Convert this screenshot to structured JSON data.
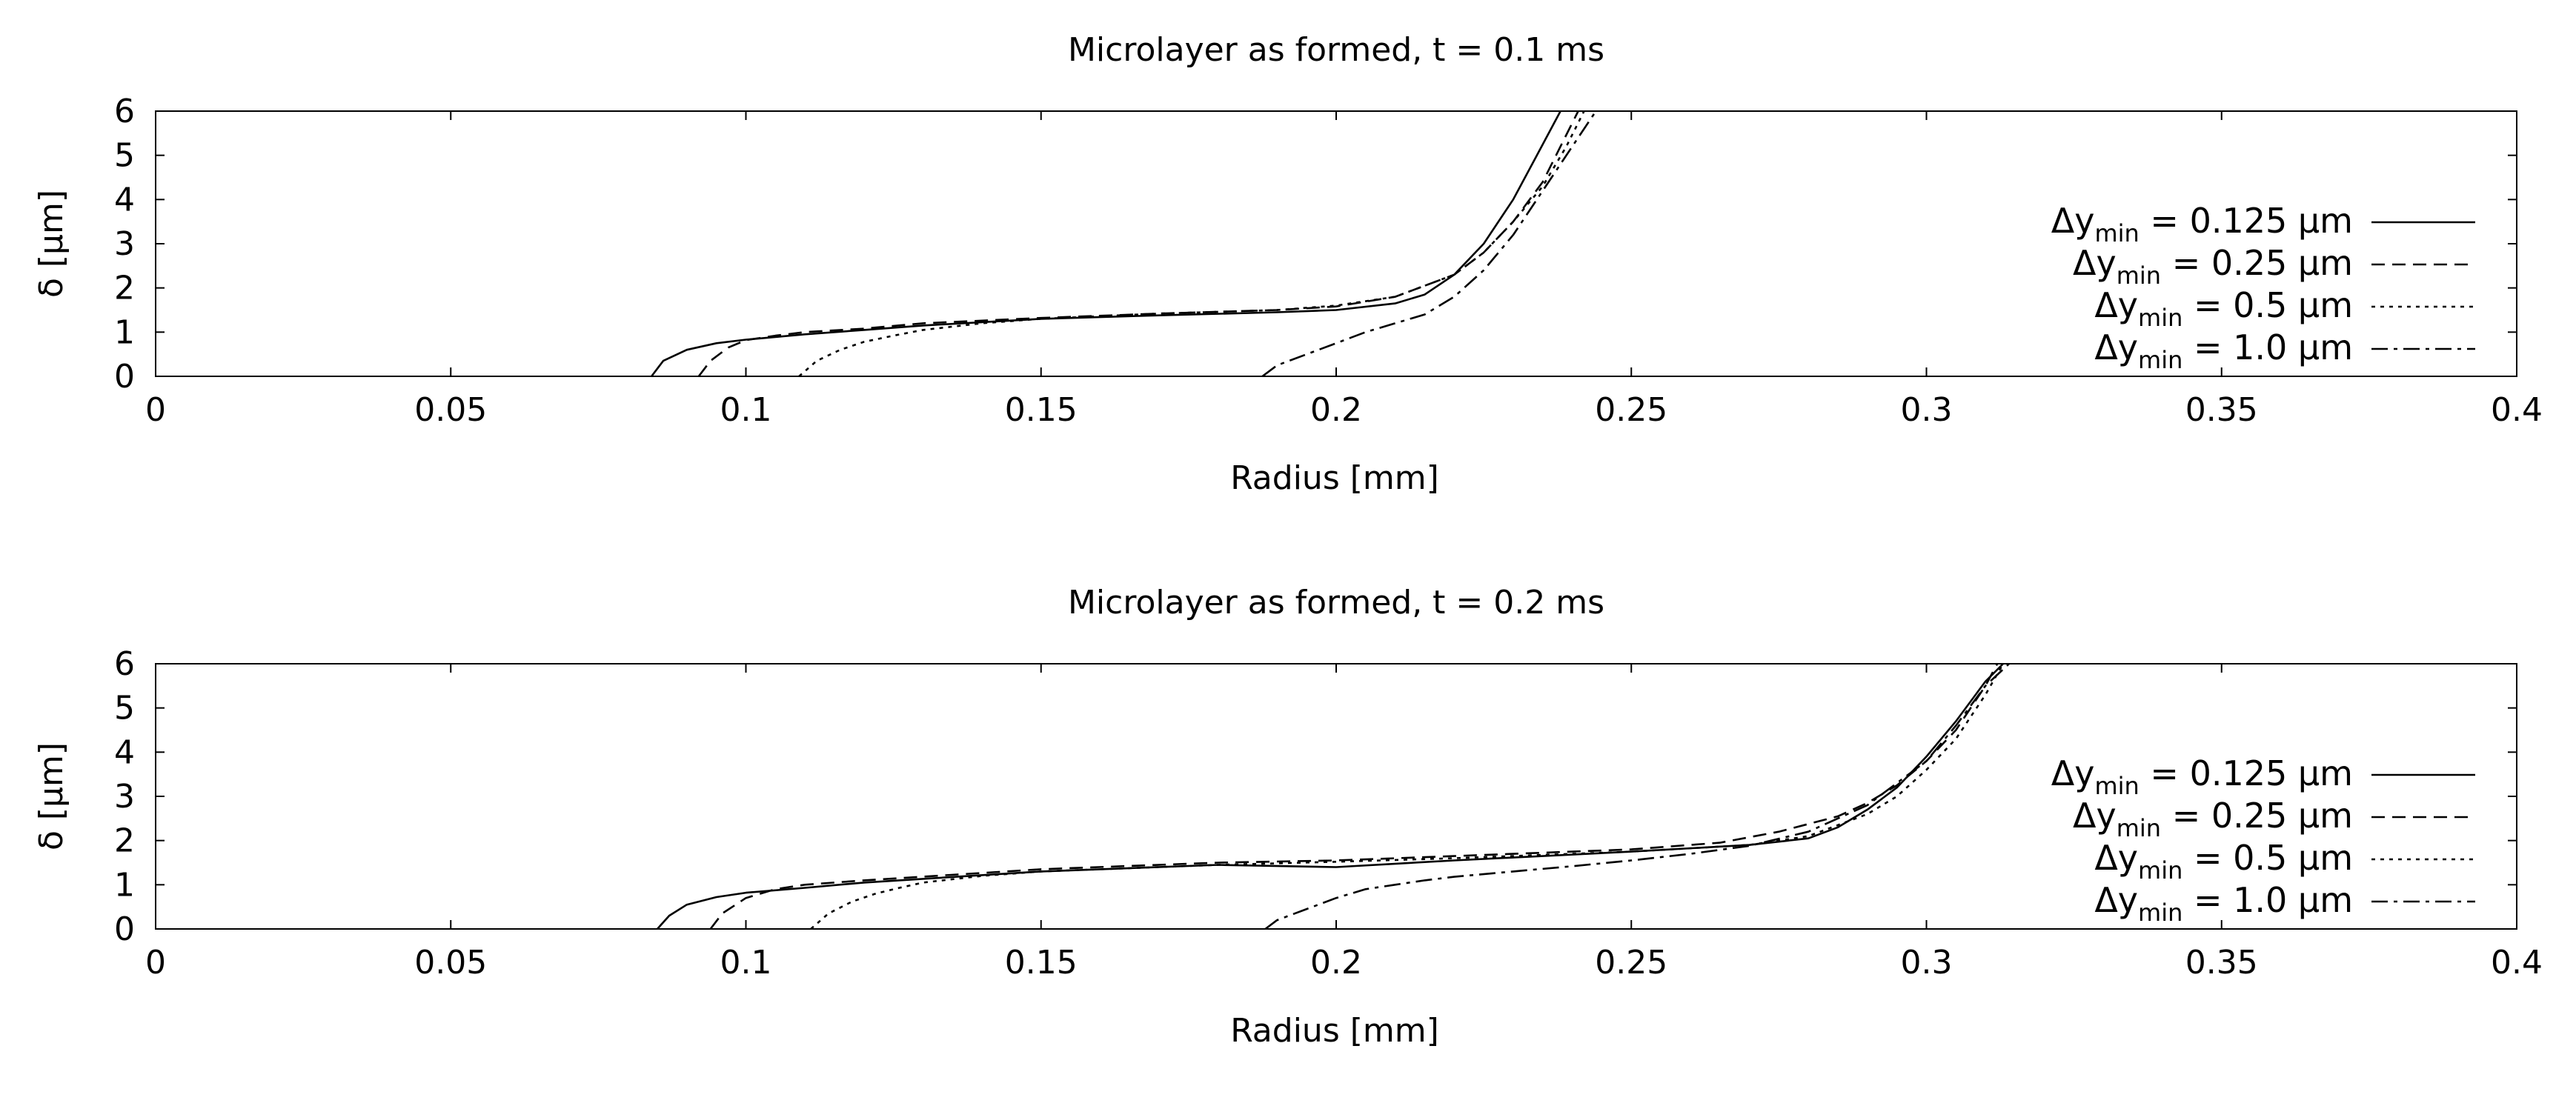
{
  "chart_data": [
    {
      "type": "line",
      "title": "Microlayer as formed, t = 0.1 ms",
      "xlabel": "Radius [mm]",
      "ylabel": "δ [µm]",
      "xlim": [
        0,
        0.4
      ],
      "ylim": [
        0,
        6
      ],
      "xticks": [
        "0",
        "0.05",
        "0.1",
        "0.15",
        "0.2",
        "0.25",
        "0.3",
        "0.35",
        "0.4"
      ],
      "yticks": [
        "0",
        "1",
        "2",
        "3",
        "4",
        "5",
        "6"
      ],
      "legend_position": "right",
      "series": [
        {
          "name": "Δy_min = 0.125 µm",
          "style": "solid",
          "label": {
            "main": "Δy",
            "sub": "min",
            "rest": " = 0.125 µm"
          },
          "x": [
            0.084,
            0.086,
            0.09,
            0.095,
            0.1,
            0.11,
            0.12,
            0.13,
            0.15,
            0.17,
            0.19,
            0.2,
            0.21,
            0.215,
            0.22,
            0.225,
            0.23,
            0.234,
            0.238
          ],
          "y": [
            0,
            0.35,
            0.6,
            0.75,
            0.83,
            0.95,
            1.05,
            1.15,
            1.3,
            1.38,
            1.45,
            1.5,
            1.65,
            1.85,
            2.3,
            3.0,
            4.0,
            5.0,
            6.0
          ]
        },
        {
          "name": "Δy_min = 0.25 µm",
          "style": "dashed",
          "label": {
            "main": "Δy",
            "sub": "min",
            "rest": " = 0.25 µm"
          },
          "x": [
            0.092,
            0.094,
            0.097,
            0.1,
            0.105,
            0.11,
            0.12,
            0.13,
            0.15,
            0.17,
            0.19,
            0.2,
            0.21,
            0.22,
            0.225,
            0.23,
            0.235,
            0.238,
            0.241
          ],
          "y": [
            0,
            0.35,
            0.65,
            0.82,
            0.92,
            1.0,
            1.08,
            1.2,
            1.32,
            1.42,
            1.5,
            1.58,
            1.8,
            2.3,
            2.8,
            3.5,
            4.4,
            5.2,
            6.0
          ]
        },
        {
          "name": "Δy_min = 0.5 µm",
          "style": "dotted",
          "label": {
            "main": "Δy",
            "sub": "min",
            "rest": " = 0.5 µm"
          },
          "x": [
            0.109,
            0.112,
            0.116,
            0.12,
            0.125,
            0.13,
            0.14,
            0.15,
            0.17,
            0.19,
            0.2,
            0.21,
            0.22,
            0.225,
            0.23,
            0.235,
            0.239,
            0.242
          ],
          "y": [
            0,
            0.35,
            0.6,
            0.78,
            0.92,
            1.05,
            1.2,
            1.3,
            1.42,
            1.5,
            1.6,
            1.8,
            2.3,
            2.8,
            3.5,
            4.3,
            5.2,
            6.0
          ]
        },
        {
          "name": "Δy_min = 1.0 µm",
          "style": "dashdot",
          "label": {
            "main": "Δy",
            "sub": "min",
            "rest": " = 1.0 µm"
          },
          "x": [
            0.1875,
            0.19,
            0.195,
            0.2,
            0.205,
            0.21,
            0.215,
            0.22,
            0.225,
            0.23,
            0.235,
            0.24,
            0.244
          ],
          "y": [
            0,
            0.25,
            0.5,
            0.75,
            1.0,
            1.2,
            1.4,
            1.8,
            2.4,
            3.2,
            4.2,
            5.2,
            6.0
          ]
        }
      ]
    },
    {
      "type": "line",
      "title": "Microlayer as formed, t = 0.2 ms",
      "xlabel": "Radius [mm]",
      "ylabel": "δ [µm]",
      "xlim": [
        0,
        0.4
      ],
      "ylim": [
        0,
        6
      ],
      "xticks": [
        "0",
        "0.05",
        "0.1",
        "0.15",
        "0.2",
        "0.25",
        "0.3",
        "0.35",
        "0.4"
      ],
      "yticks": [
        "0",
        "1",
        "2",
        "3",
        "4",
        "5",
        "6"
      ],
      "legend_position": "right",
      "series": [
        {
          "name": "Δy_min = 0.125 µm",
          "style": "solid",
          "label": {
            "main": "Δy",
            "sub": "min",
            "rest": " = 0.125 µm"
          },
          "x": [
            0.085,
            0.087,
            0.09,
            0.095,
            0.1,
            0.11,
            0.12,
            0.15,
            0.18,
            0.2,
            0.22,
            0.25,
            0.27,
            0.28,
            0.285,
            0.29,
            0.295,
            0.3,
            0.305,
            0.31,
            0.313
          ],
          "y": [
            0,
            0.3,
            0.55,
            0.72,
            0.82,
            0.93,
            1.05,
            1.3,
            1.45,
            1.4,
            1.55,
            1.75,
            1.9,
            2.05,
            2.3,
            2.7,
            3.2,
            3.9,
            4.7,
            5.6,
            6.0
          ]
        },
        {
          "name": "Δy_min = 0.25 µm",
          "style": "dashed",
          "label": {
            "main": "Δy",
            "sub": "min",
            "rest": " = 0.25 µm"
          },
          "x": [
            0.094,
            0.096,
            0.1,
            0.105,
            0.11,
            0.12,
            0.15,
            0.18,
            0.2,
            0.22,
            0.25,
            0.265,
            0.275,
            0.285,
            0.29,
            0.295,
            0.3,
            0.305,
            0.31,
            0.312
          ],
          "y": [
            0,
            0.35,
            0.7,
            0.9,
            1.0,
            1.1,
            1.35,
            1.5,
            1.55,
            1.65,
            1.8,
            1.95,
            2.2,
            2.55,
            2.85,
            3.25,
            3.8,
            4.5,
            5.5,
            6.0
          ]
        },
        {
          "name": "Δy_min = 0.5 µm",
          "style": "dotted",
          "label": {
            "main": "Δy",
            "sub": "min",
            "rest": " = 0.5 µm"
          },
          "x": [
            0.111,
            0.114,
            0.118,
            0.122,
            0.126,
            0.13,
            0.14,
            0.15,
            0.18,
            0.2,
            0.22,
            0.25,
            0.27,
            0.28,
            0.29,
            0.295,
            0.3,
            0.305,
            0.31,
            0.313
          ],
          "y": [
            0,
            0.35,
            0.62,
            0.8,
            0.93,
            1.05,
            1.2,
            1.3,
            1.45,
            1.52,
            1.6,
            1.75,
            1.9,
            2.1,
            2.6,
            3.0,
            3.6,
            4.3,
            5.3,
            6.0
          ]
        },
        {
          "name": "Δy_min = 1.0 µm",
          "style": "dashdot",
          "label": {
            "main": "Δy",
            "sub": "min",
            "rest": " = 1.0 µm"
          },
          "x": [
            0.188,
            0.19,
            0.195,
            0.2,
            0.205,
            0.21,
            0.215,
            0.22,
            0.23,
            0.24,
            0.25,
            0.26,
            0.27,
            0.28,
            0.29,
            0.3,
            0.305,
            0.31,
            0.314
          ],
          "y": [
            0,
            0.2,
            0.45,
            0.7,
            0.9,
            1.0,
            1.1,
            1.18,
            1.3,
            1.42,
            1.55,
            1.7,
            1.88,
            2.2,
            2.8,
            3.8,
            4.6,
            5.5,
            6.0
          ]
        }
      ]
    }
  ]
}
